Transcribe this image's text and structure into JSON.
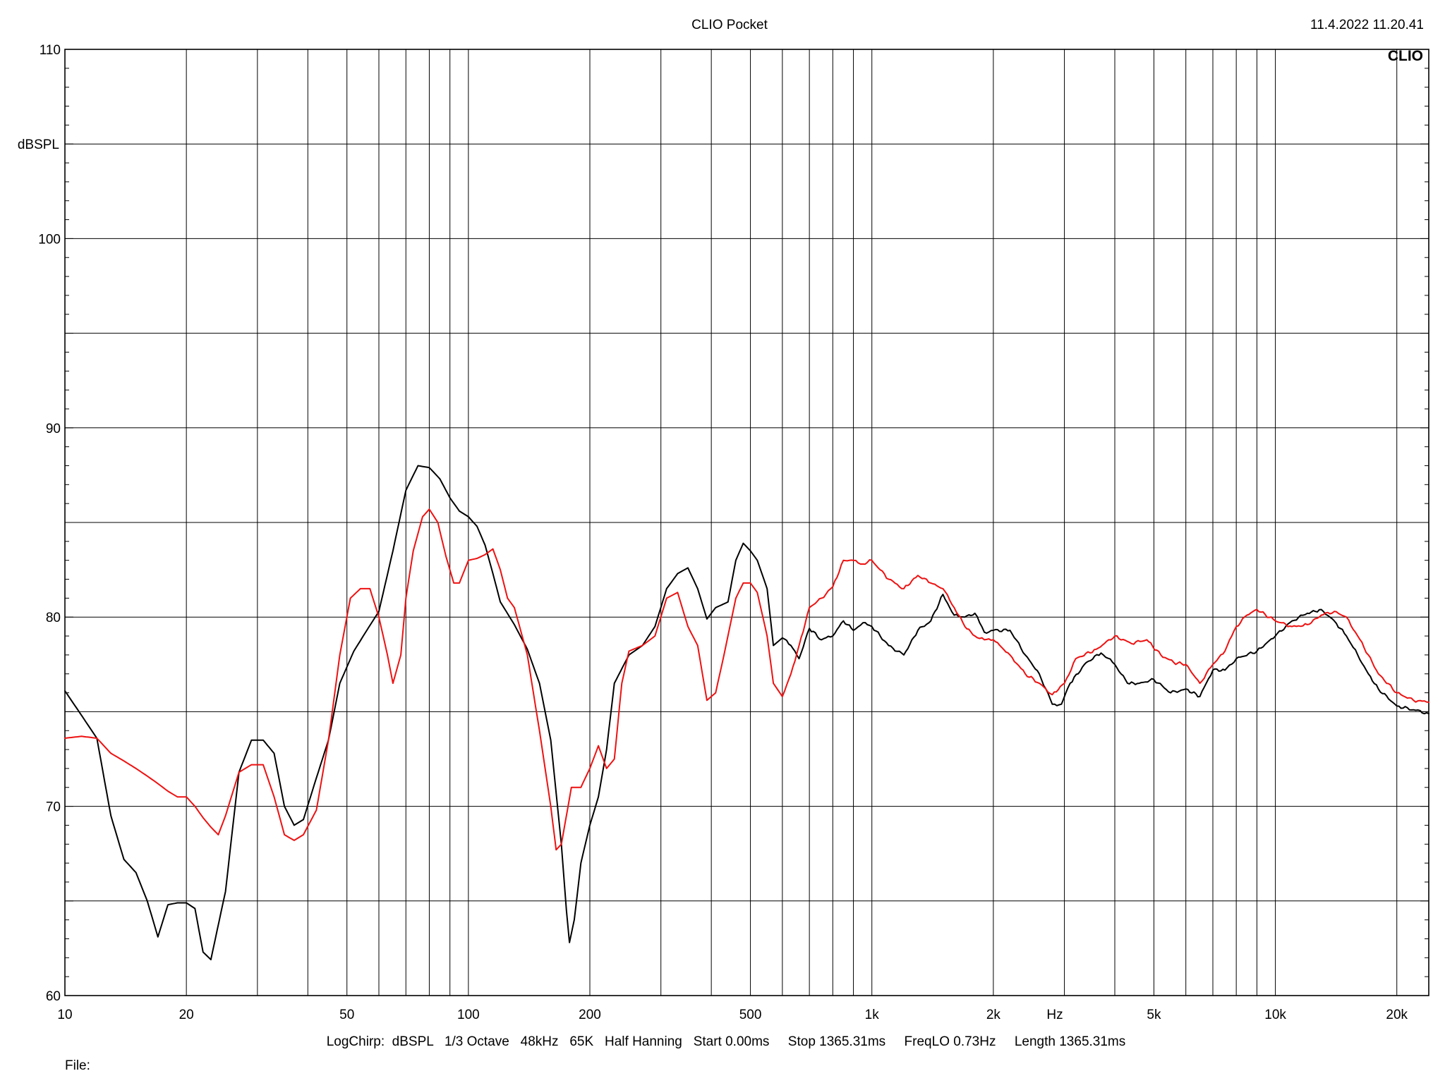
{
  "header": {
    "title": "CLIO Pocket",
    "timestamp": "11.4.2022 11.20.41",
    "brand": "CLIO"
  },
  "footer": {
    "settings": "LogChirp:  dBSPL   1/3 Octave   48kHz   65K   Half Hanning   Start 0.00ms     Stop 1365.31ms     FreqLO 0.73Hz     Length 1365.31ms",
    "file_label": "File:"
  },
  "chart_data": {
    "type": "line",
    "ylabel": "dBSPL",
    "xlabel": "Hz",
    "x_scale": "log",
    "xlim": [
      10,
      24000
    ],
    "ylim": [
      60,
      110
    ],
    "grid": true,
    "y_ticks": [
      {
        "value": 110,
        "label": "110"
      },
      {
        "value": 100,
        "label": "100"
      },
      {
        "value": 90,
        "label": "90"
      },
      {
        "value": 80,
        "label": "80"
      },
      {
        "value": 70,
        "label": "70"
      },
      {
        "value": 60,
        "label": "60"
      }
    ],
    "x_ticks": [
      {
        "value": 10,
        "label": "10"
      },
      {
        "value": 20,
        "label": "20"
      },
      {
        "value": 50,
        "label": "50"
      },
      {
        "value": 100,
        "label": "100"
      },
      {
        "value": 200,
        "label": "200"
      },
      {
        "value": 500,
        "label": "500"
      },
      {
        "value": 1000,
        "label": "1k"
      },
      {
        "value": 2000,
        "label": "2k"
      },
      {
        "value": 5000,
        "label": "5k"
      },
      {
        "value": 10000,
        "label": "10k"
      },
      {
        "value": 20000,
        "label": "20k"
      }
    ],
    "series": [
      {
        "color": "#000000",
        "points": [
          [
            10,
            76.1
          ],
          [
            11,
            74.8
          ],
          [
            12,
            73.6
          ],
          [
            13,
            69.5
          ],
          [
            14,
            67.2
          ],
          [
            15,
            66.5
          ],
          [
            16,
            65.0
          ],
          [
            17,
            63.1
          ],
          [
            18,
            64.8
          ],
          [
            19,
            64.9
          ],
          [
            20,
            64.9
          ],
          [
            21,
            64.6
          ],
          [
            22,
            62.3
          ],
          [
            23,
            61.9
          ],
          [
            25,
            65.5
          ],
          [
            27,
            71.8
          ],
          [
            29,
            73.5
          ],
          [
            31,
            73.5
          ],
          [
            33,
            72.8
          ],
          [
            35,
            70.0
          ],
          [
            37,
            69.0
          ],
          [
            39,
            69.3
          ],
          [
            42,
            71.5
          ],
          [
            45,
            73.5
          ],
          [
            48,
            76.5
          ],
          [
            52,
            78.2
          ],
          [
            56,
            79.3
          ],
          [
            60,
            80.3
          ],
          [
            65,
            83.5
          ],
          [
            70,
            86.7
          ],
          [
            75,
            88.0
          ],
          [
            80,
            87.9
          ],
          [
            85,
            87.3
          ],
          [
            90,
            86.3
          ],
          [
            95,
            85.6
          ],
          [
            100,
            85.3
          ],
          [
            105,
            84.8
          ],
          [
            110,
            83.8
          ],
          [
            115,
            82.3
          ],
          [
            120,
            80.8
          ],
          [
            130,
            79.6
          ],
          [
            140,
            78.3
          ],
          [
            150,
            76.5
          ],
          [
            160,
            73.5
          ],
          [
            170,
            68.0
          ],
          [
            175,
            64.5
          ],
          [
            178,
            62.8
          ],
          [
            183,
            64.0
          ],
          [
            190,
            67.0
          ],
          [
            200,
            69.0
          ],
          [
            210,
            70.5
          ],
          [
            220,
            73.0
          ],
          [
            230,
            76.5
          ],
          [
            250,
            78.0
          ],
          [
            270,
            78.5
          ],
          [
            290,
            79.5
          ],
          [
            310,
            81.5
          ],
          [
            330,
            82.3
          ],
          [
            350,
            82.6
          ],
          [
            370,
            81.5
          ],
          [
            390,
            79.9
          ],
          [
            410,
            80.5
          ],
          [
            440,
            80.8
          ],
          [
            460,
            83.0
          ],
          [
            480,
            83.9
          ],
          [
            500,
            83.5
          ],
          [
            520,
            83.0
          ],
          [
            550,
            81.5
          ],
          [
            570,
            78.5
          ],
          [
            600,
            78.9
          ],
          [
            630,
            78.5
          ],
          [
            660,
            77.8
          ],
          [
            700,
            79.4
          ],
          [
            750,
            78.8
          ],
          [
            800,
            79.0
          ],
          [
            850,
            79.8
          ],
          [
            900,
            79.3
          ],
          [
            950,
            79.7
          ],
          [
            1000,
            79.5
          ],
          [
            1100,
            78.5
          ],
          [
            1200,
            78.0
          ],
          [
            1300,
            79.3
          ],
          [
            1400,
            79.8
          ],
          [
            1500,
            81.2
          ],
          [
            1600,
            80.1
          ],
          [
            1700,
            80.0
          ],
          [
            1800,
            80.2
          ],
          [
            1900,
            79.2
          ],
          [
            2000,
            79.3
          ],
          [
            2200,
            79.3
          ],
          [
            2400,
            78.0
          ],
          [
            2600,
            77.0
          ],
          [
            2800,
            75.4
          ],
          [
            2950,
            75.4
          ],
          [
            3100,
            76.5
          ],
          [
            3400,
            77.6
          ],
          [
            3700,
            78.1
          ],
          [
            4000,
            77.5
          ],
          [
            4300,
            76.5
          ],
          [
            4600,
            76.5
          ],
          [
            5000,
            76.7
          ],
          [
            5500,
            76.0
          ],
          [
            6000,
            76.2
          ],
          [
            6500,
            75.8
          ],
          [
            7000,
            77.2
          ],
          [
            7500,
            77.2
          ],
          [
            8000,
            77.8
          ],
          [
            9000,
            78.2
          ],
          [
            10000,
            79.0
          ],
          [
            11000,
            79.8
          ],
          [
            12000,
            80.2
          ],
          [
            13000,
            80.4
          ],
          [
            14000,
            79.8
          ],
          [
            15000,
            79.0
          ],
          [
            16000,
            78.0
          ],
          [
            17000,
            77.0
          ],
          [
            18000,
            76.2
          ],
          [
            20000,
            75.3
          ],
          [
            22000,
            75.1
          ],
          [
            24000,
            74.9
          ]
        ]
      },
      {
        "color": "#ee1111",
        "points": [
          [
            10,
            73.6
          ],
          [
            11,
            73.7
          ],
          [
            12,
            73.6
          ],
          [
            13,
            72.8
          ],
          [
            14,
            72.4
          ],
          [
            15,
            72.0
          ],
          [
            16,
            71.6
          ],
          [
            17,
            71.2
          ],
          [
            18,
            70.8
          ],
          [
            19,
            70.5
          ],
          [
            20,
            70.5
          ],
          [
            21,
            70.0
          ],
          [
            22,
            69.4
          ],
          [
            23,
            68.9
          ],
          [
            24,
            68.5
          ],
          [
            25,
            69.5
          ],
          [
            27,
            71.8
          ],
          [
            29,
            72.2
          ],
          [
            31,
            72.2
          ],
          [
            33,
            70.5
          ],
          [
            35,
            68.5
          ],
          [
            37,
            68.2
          ],
          [
            39,
            68.5
          ],
          [
            42,
            69.8
          ],
          [
            45,
            73.5
          ],
          [
            48,
            78.0
          ],
          [
            51,
            81.0
          ],
          [
            54,
            81.5
          ],
          [
            57,
            81.5
          ],
          [
            60,
            80.0
          ],
          [
            63,
            78.0
          ],
          [
            65,
            76.5
          ],
          [
            68,
            78.0
          ],
          [
            70,
            81.0
          ],
          [
            73,
            83.5
          ],
          [
            77,
            85.3
          ],
          [
            80,
            85.7
          ],
          [
            84,
            85.0
          ],
          [
            88,
            83.2
          ],
          [
            92,
            81.8
          ],
          [
            95,
            81.8
          ],
          [
            100,
            83.0
          ],
          [
            105,
            83.1
          ],
          [
            110,
            83.3
          ],
          [
            115,
            83.6
          ],
          [
            120,
            82.5
          ],
          [
            125,
            81.0
          ],
          [
            130,
            80.5
          ],
          [
            140,
            78.0
          ],
          [
            150,
            74.0
          ],
          [
            160,
            70.0
          ],
          [
            165,
            67.7
          ],
          [
            170,
            68.0
          ],
          [
            180,
            71.0
          ],
          [
            190,
            71.0
          ],
          [
            200,
            72.0
          ],
          [
            210,
            73.2
          ],
          [
            220,
            72.0
          ],
          [
            230,
            72.5
          ],
          [
            240,
            76.5
          ],
          [
            250,
            78.2
          ],
          [
            270,
            78.5
          ],
          [
            290,
            79.0
          ],
          [
            310,
            81.0
          ],
          [
            330,
            81.3
          ],
          [
            350,
            79.5
          ],
          [
            370,
            78.5
          ],
          [
            390,
            75.6
          ],
          [
            410,
            76.0
          ],
          [
            430,
            78.0
          ],
          [
            460,
            81.0
          ],
          [
            480,
            81.8
          ],
          [
            500,
            81.8
          ],
          [
            520,
            81.3
          ],
          [
            550,
            79.0
          ],
          [
            570,
            76.5
          ],
          [
            600,
            75.8
          ],
          [
            630,
            77.0
          ],
          [
            660,
            78.5
          ],
          [
            700,
            80.5
          ],
          [
            750,
            81.0
          ],
          [
            800,
            81.6
          ],
          [
            850,
            83.0
          ],
          [
            900,
            83.0
          ],
          [
            950,
            82.8
          ],
          [
            1000,
            83.0
          ],
          [
            1100,
            82.0
          ],
          [
            1200,
            81.5
          ],
          [
            1300,
            82.2
          ],
          [
            1400,
            81.8
          ],
          [
            1500,
            81.5
          ],
          [
            1600,
            80.5
          ],
          [
            1700,
            79.5
          ],
          [
            1800,
            79.0
          ],
          [
            1900,
            78.8
          ],
          [
            2000,
            78.8
          ],
          [
            2200,
            78.0
          ],
          [
            2400,
            77.0
          ],
          [
            2600,
            76.5
          ],
          [
            2800,
            75.9
          ],
          [
            3000,
            76.5
          ],
          [
            3200,
            77.8
          ],
          [
            3600,
            78.3
          ],
          [
            4000,
            79.0
          ],
          [
            4400,
            78.6
          ],
          [
            4800,
            78.8
          ],
          [
            5200,
            78.0
          ],
          [
            5600,
            77.6
          ],
          [
            6000,
            77.5
          ],
          [
            6500,
            76.5
          ],
          [
            7000,
            77.5
          ],
          [
            7500,
            78.2
          ],
          [
            8000,
            79.5
          ],
          [
            8500,
            80.1
          ],
          [
            9000,
            80.4
          ],
          [
            10000,
            79.8
          ],
          [
            11000,
            79.5
          ],
          [
            12000,
            79.6
          ],
          [
            13000,
            80.1
          ],
          [
            14000,
            80.3
          ],
          [
            15000,
            80.0
          ],
          [
            16000,
            79.0
          ],
          [
            17000,
            78.0
          ],
          [
            18000,
            77.0
          ],
          [
            20000,
            76.0
          ],
          [
            22000,
            75.6
          ],
          [
            24000,
            75.5
          ]
        ]
      }
    ]
  }
}
